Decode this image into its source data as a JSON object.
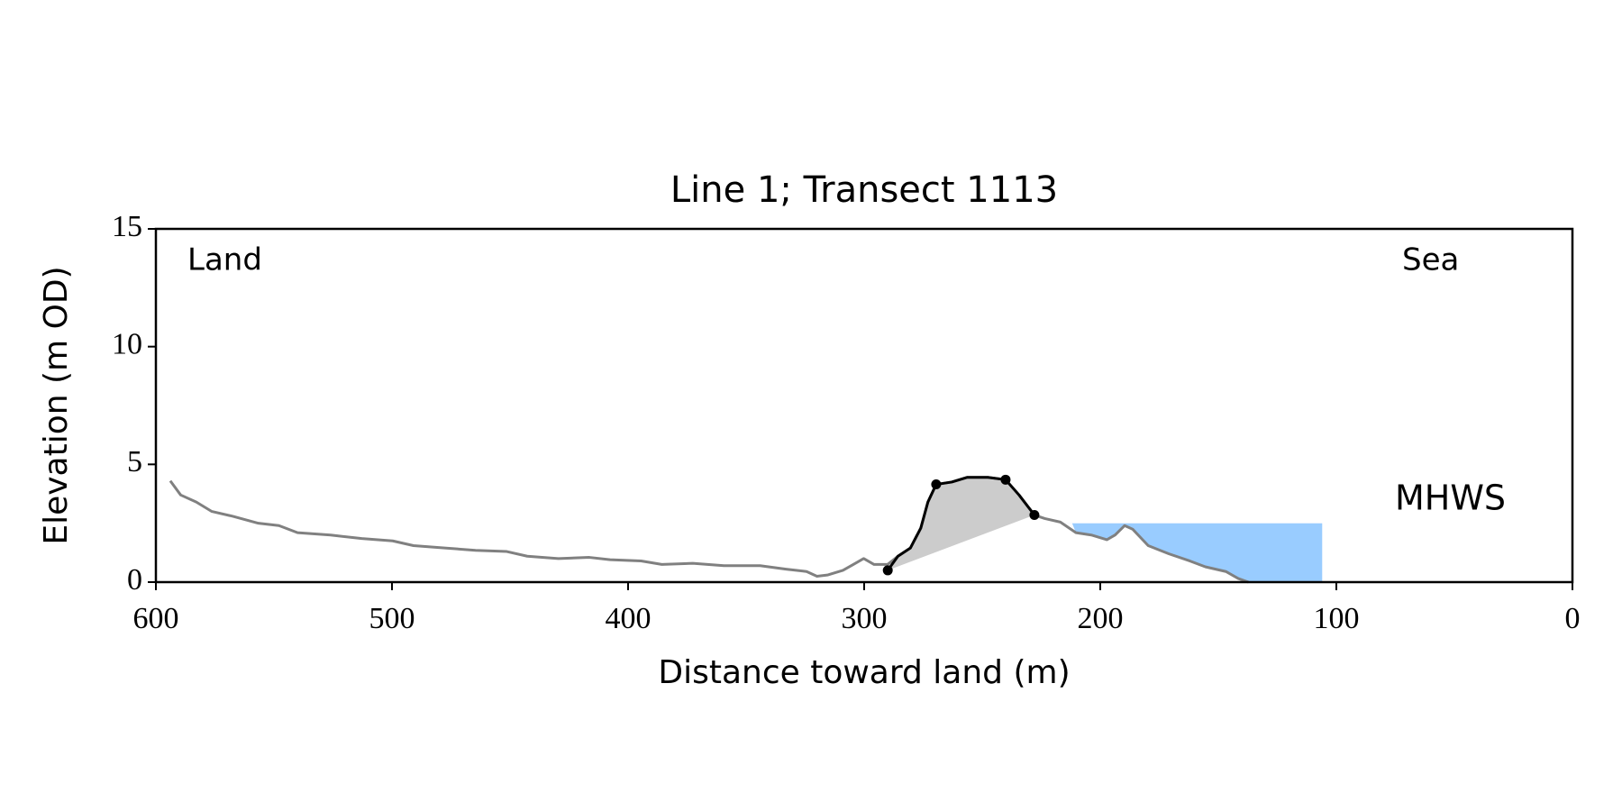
{
  "chart_data": {
    "type": "line",
    "title": "Line 1; Transect 1113",
    "x_label": "Distance toward land (m)",
    "y_label": "Elevation (m OD)",
    "xlim": [
      600,
      0
    ],
    "ylim": [
      0,
      15
    ],
    "xticks": [
      600,
      500,
      400,
      300,
      200,
      100,
      0
    ],
    "yticks": [
      0,
      5,
      10,
      15
    ],
    "annotations": {
      "left": "Land",
      "right": "Sea"
    },
    "profile": {
      "color": "#808080",
      "x": [
        593.9,
        589.5,
        582.9,
        576.3,
        567.6,
        556.6,
        547.9,
        540,
        526,
        512.8,
        499.7,
        490.9,
        477.7,
        464.6,
        451.4,
        442.7,
        429.5,
        416.4,
        407.6,
        394.5,
        385.7,
        372.6,
        359.4,
        344.1,
        333.1,
        324.4,
        320,
        315.6,
        309,
        304.6,
        300.2,
        295.8,
        290.1,
        285.7,
        280.4,
        276,
        273,
        269.5,
        262.9,
        256.3,
        247.6,
        240.1,
        234.4,
        227.9,
        223.5,
        216.9,
        210.3,
        203.8,
        197.2,
        193.7,
        189.7,
        186.3,
        179.7,
        170.9,
        162.1,
        155.5,
        146.8,
        141.5,
        137.2
      ],
      "y": [
        4.3,
        3.7,
        3.4,
        3.0,
        2.8,
        2.5,
        2.4,
        2.1,
        2.0,
        1.85,
        1.75,
        1.55,
        1.45,
        1.35,
        1.3,
        1.1,
        1.0,
        1.05,
        0.95,
        0.9,
        0.75,
        0.8,
        0.7,
        0.7,
        0.55,
        0.45,
        0.25,
        0.3,
        0.5,
        0.75,
        1.0,
        0.75,
        0.75,
        1.1,
        1.45,
        2.3,
        3.4,
        4.15,
        4.25,
        4.45,
        4.45,
        4.35,
        3.7,
        2.85,
        2.7,
        2.55,
        2.1,
        2.0,
        1.8,
        2.0,
        2.4,
        2.25,
        1.55,
        1.2,
        0.9,
        0.65,
        0.45,
        0.15,
        0.0
      ]
    },
    "dune": {
      "color": "#000000",
      "fill": "#cccccc",
      "x": [
        290,
        285.7,
        280.4,
        276,
        273,
        269.5,
        262.9,
        256.3,
        247.6,
        240.1,
        234.4,
        227.9
      ],
      "y": [
        0.5,
        1.1,
        1.45,
        2.3,
        3.4,
        4.15,
        4.25,
        4.45,
        4.45,
        4.35,
        3.7,
        2.85
      ]
    },
    "dune_points": {
      "color": "#000000",
      "x": [
        290,
        269.5,
        240.1,
        227.9
      ],
      "y": [
        0.5,
        4.15,
        4.35,
        2.85
      ]
    },
    "mhws": {
      "label": "MHWS",
      "level": 2.5,
      "x_extent": [
        215,
        106
      ],
      "color": "#99ccff",
      "label_color": "#6a9acb"
    }
  }
}
